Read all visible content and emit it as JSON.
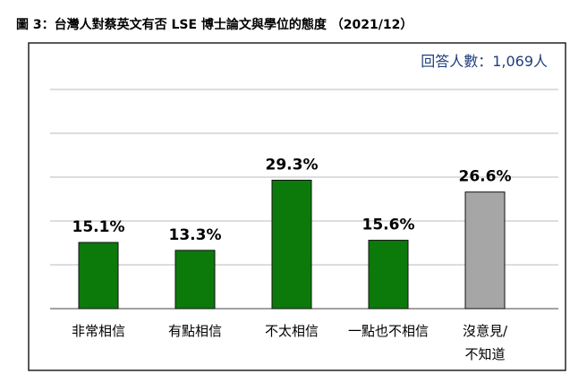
{
  "chart_data": {
    "type": "bar",
    "title": "圖 3：台灣人對蔡英文有否 LSE 博士論文與學位的態度 （2021/12）",
    "annotation": "回答人數：1,069人",
    "categories": [
      "非常相信",
      "有點相信",
      "不太相信",
      "一點也不相信",
      "沒意見/\n不知道"
    ],
    "values": [
      15.1,
      13.3,
      29.3,
      15.6,
      26.6
    ],
    "value_labels": [
      "15.1%",
      "13.3%",
      "29.3%",
      "15.6%",
      "26.6%"
    ],
    "colors": [
      "#0b7a0b",
      "#0b7a0b",
      "#0b7a0b",
      "#0b7a0b",
      "#a6a6a6"
    ],
    "ylim": [
      0,
      50
    ],
    "yticks": [
      0,
      10,
      20,
      30,
      40,
      50
    ],
    "grid": true
  }
}
